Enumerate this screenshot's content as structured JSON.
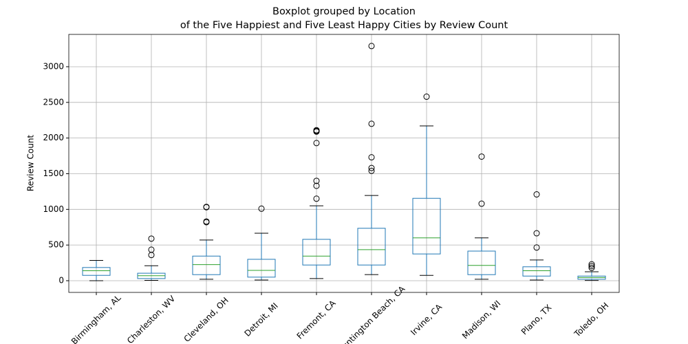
{
  "chart_data": {
    "type": "box",
    "title": "Boxplot grouped by Location",
    "subtitle": "of the Five Happiest and Five Least Happy Cities by Review Count",
    "y_label": "Review Count",
    "categories": [
      "Birmingham, AL",
      "Charleston, WV",
      "Cleveland, OH",
      "Detroit, MI",
      "Fremont, CA",
      "Huntington Beach, CA",
      "Irvine, CA",
      "Madison, WI",
      "Plano, TX",
      "Toledo, OH"
    ],
    "boxes": [
      {
        "whislo": 0,
        "q1": 75,
        "med": 140,
        "q3": 185,
        "whishi": 285,
        "fliers": []
      },
      {
        "whislo": 5,
        "q1": 30,
        "med": 70,
        "q3": 105,
        "whishi": 210,
        "fliers": [
          360,
          435,
          590
        ]
      },
      {
        "whislo": 20,
        "q1": 85,
        "med": 225,
        "q3": 345,
        "whishi": 570,
        "fliers": [
          820,
          830,
          1030,
          1035
        ]
      },
      {
        "whislo": 10,
        "q1": 50,
        "med": 145,
        "q3": 300,
        "whishi": 665,
        "fliers": [
          1010
        ]
      },
      {
        "whislo": 30,
        "q1": 220,
        "med": 345,
        "q3": 580,
        "whishi": 1050,
        "fliers": [
          1150,
          1330,
          1400,
          1930,
          2090,
          2100,
          2110
        ]
      },
      {
        "whislo": 85,
        "q1": 220,
        "med": 435,
        "q3": 735,
        "whishi": 1195,
        "fliers": [
          1540,
          1580,
          1730,
          2200,
          3290
        ]
      },
      {
        "whislo": 75,
        "q1": 375,
        "med": 600,
        "q3": 1155,
        "whishi": 2170,
        "fliers": [
          2580
        ]
      },
      {
        "whislo": 20,
        "q1": 85,
        "med": 215,
        "q3": 415,
        "whishi": 600,
        "fliers": [
          1080,
          1740
        ]
      },
      {
        "whislo": 10,
        "q1": 65,
        "med": 140,
        "q3": 195,
        "whishi": 290,
        "fliers": [
          465,
          665,
          1210
        ]
      },
      {
        "whislo": 3,
        "q1": 20,
        "med": 45,
        "q3": 65,
        "whishi": 125,
        "fliers": [
          180,
          205,
          230
        ]
      }
    ],
    "box_color": "#1f77b4",
    "median_color": "#2ca02c",
    "cap_color": "#000000",
    "flier_color": "#000000",
    "ylim": [
      -164,
      3453
    ],
    "yticks": [
      0,
      500,
      1000,
      1500,
      2000,
      2500,
      3000
    ],
    "grid": true
  }
}
